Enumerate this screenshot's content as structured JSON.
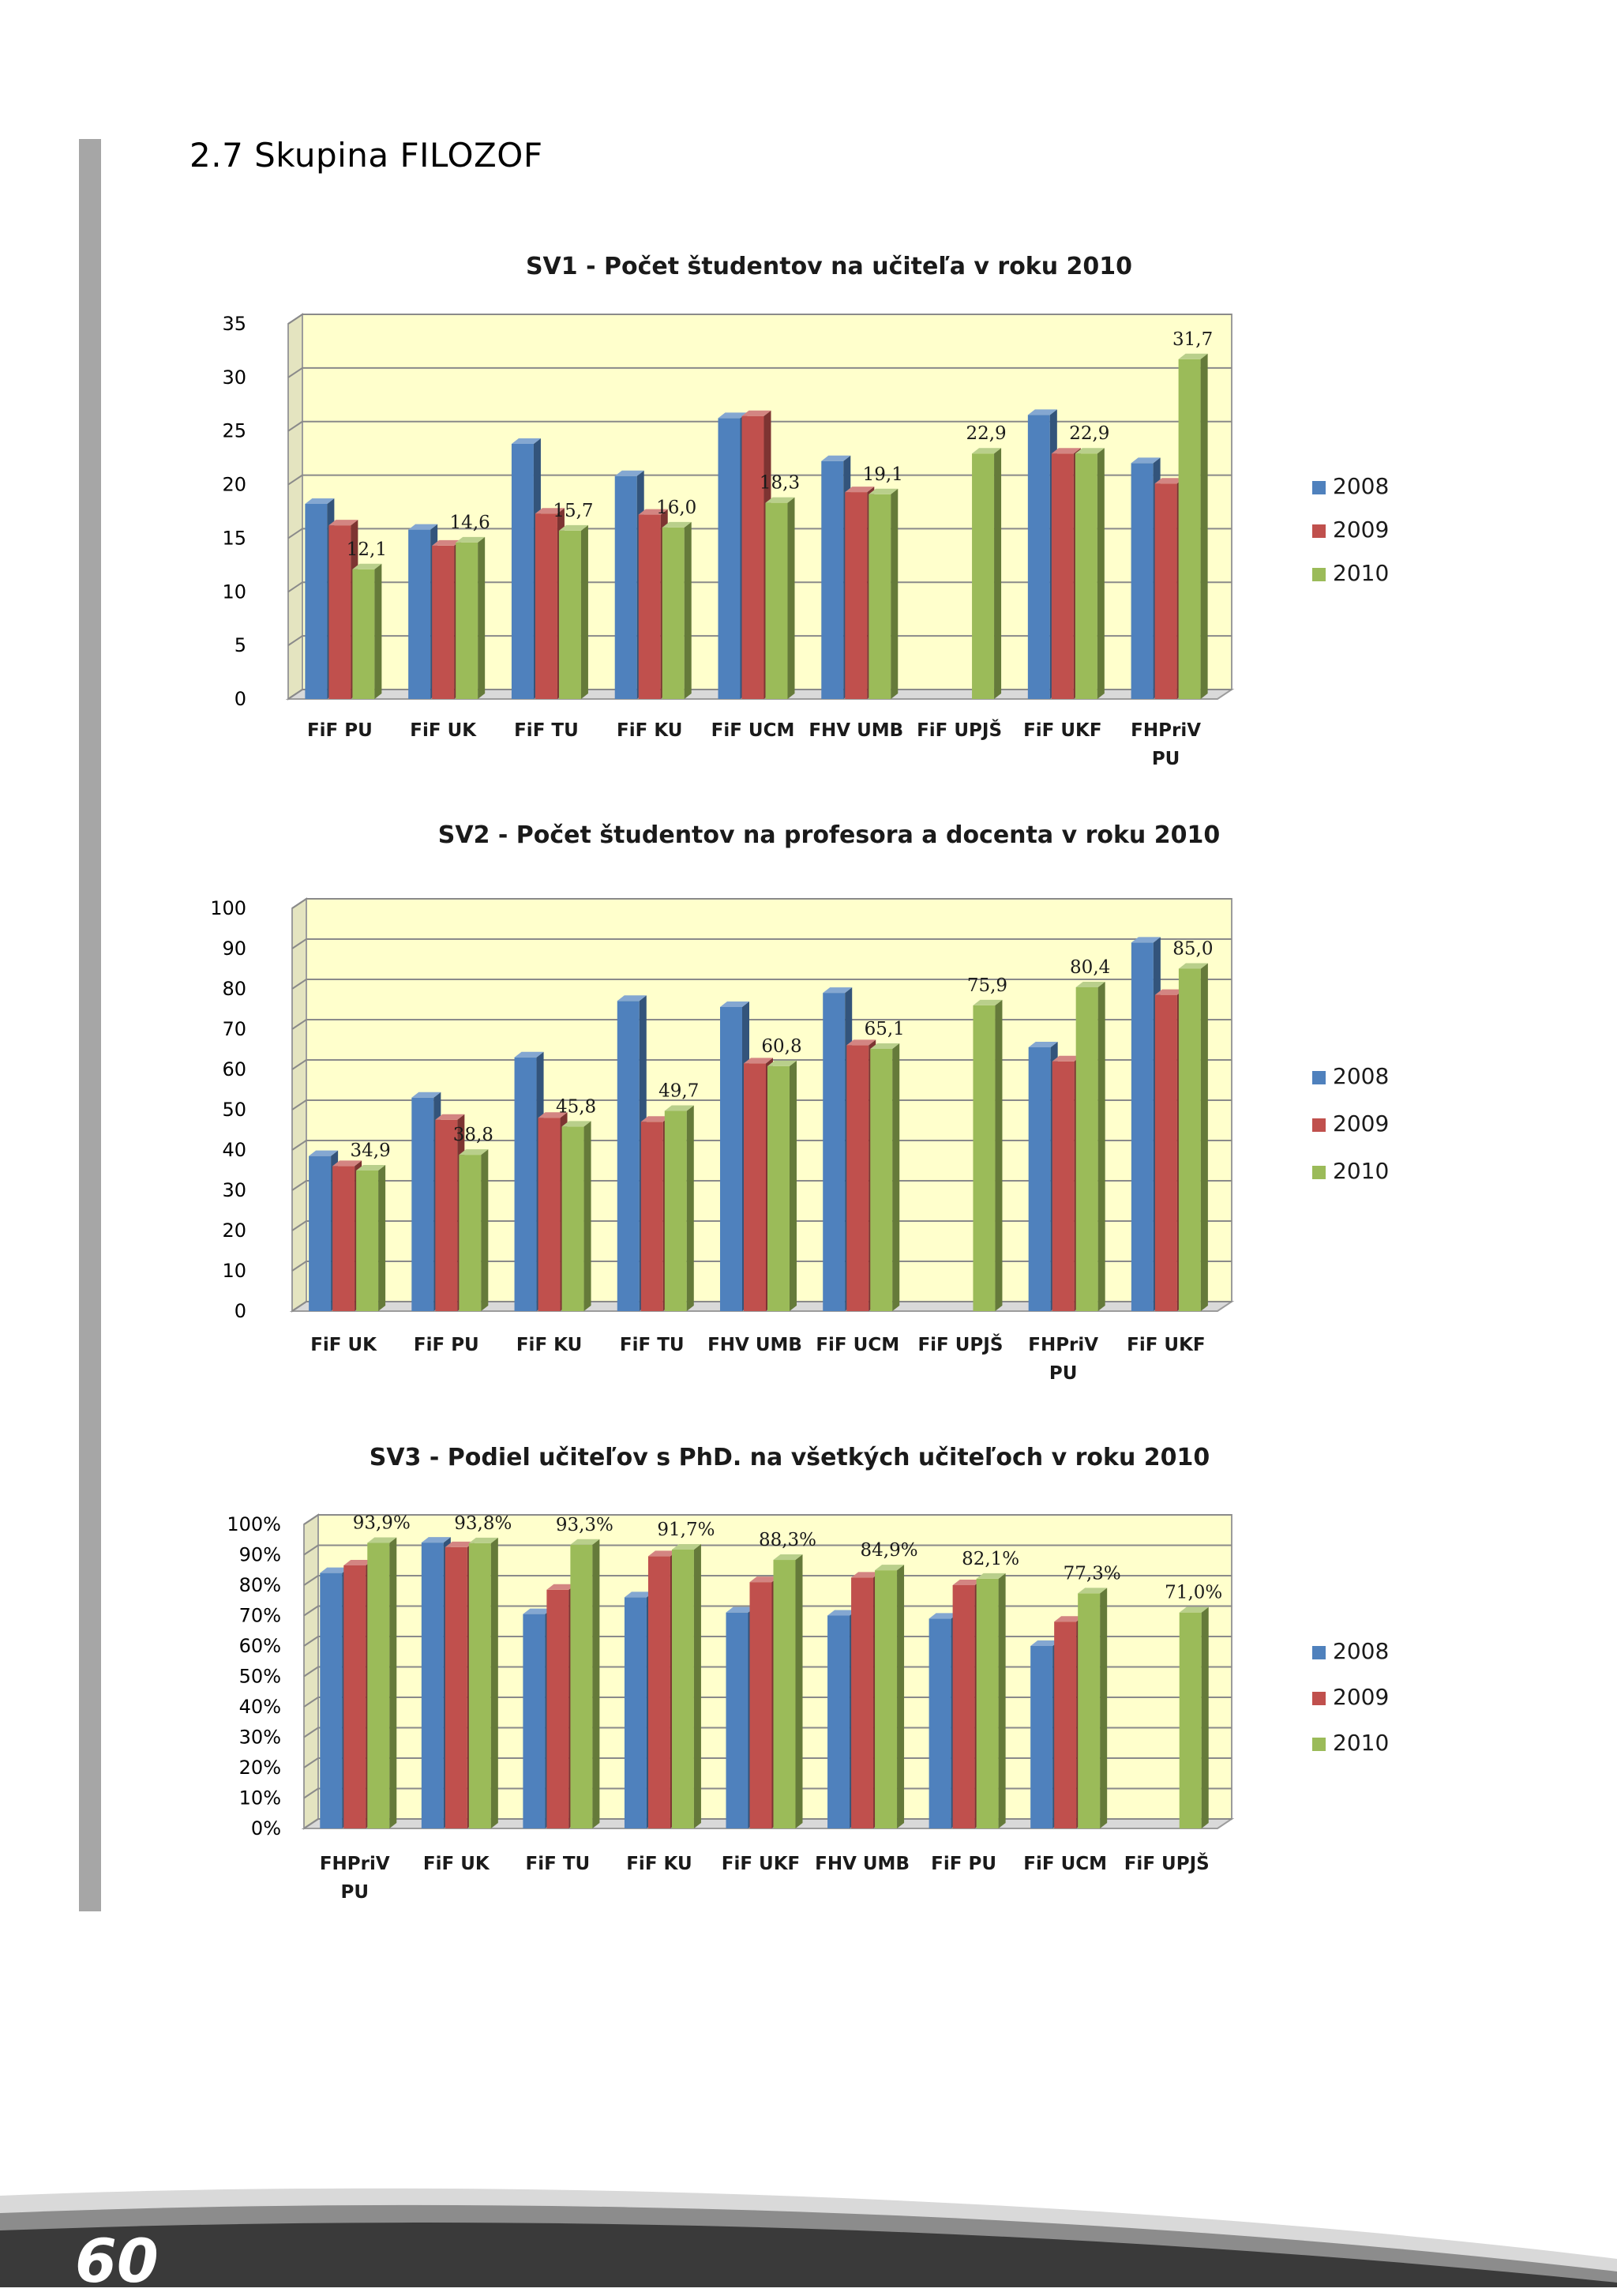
{
  "page": {
    "section_heading": "2.7 Skupina FILOZOF",
    "page_number": "60"
  },
  "colors": {
    "s2008": "#4F81BD",
    "s2009": "#C0504D",
    "s2010": "#9BBB59",
    "plot_background": "#FFFFCC",
    "side_bar": "#A6A6A6"
  },
  "chart_data": [
    {
      "id": "sv1",
      "type": "bar",
      "title": "SV1 - Počet študentov na učiteľa v roku 2010",
      "categories": [
        "FiF PU",
        "FiF UK",
        "FiF TU",
        "FiF  KU",
        "FiF  UCM",
        "FHV UMB",
        "FiF UPJŠ",
        "FiF  UKF",
        "FHPriV\nPU"
      ],
      "series": [
        {
          "name": "2008",
          "values": [
            18.2,
            15.8,
            23.8,
            20.8,
            26.2,
            22.2,
            null,
            26.5,
            22.0
          ]
        },
        {
          "name": "2009",
          "values": [
            16.2,
            14.3,
            17.3,
            17.2,
            26.4,
            19.3,
            null,
            22.9,
            20.1
          ]
        },
        {
          "name": "2010",
          "values": [
            12.1,
            14.6,
            15.7,
            16.0,
            18.3,
            19.1,
            22.9,
            22.9,
            31.7
          ]
        }
      ],
      "data_labels": [
        "12,1",
        "14,6",
        "15,7",
        "16,0",
        "18,3",
        "19,1",
        "22,9",
        "22,9",
        "31,7"
      ],
      "ylim": [
        0,
        35
      ],
      "yticks": [
        "0",
        "5",
        "10",
        "15",
        "20",
        "25",
        "30",
        "35"
      ],
      "xlabel": "",
      "ylabel": "",
      "legend": [
        "2008",
        "2009",
        "2010"
      ],
      "legend_position": "right",
      "grid": true
    },
    {
      "id": "sv2",
      "type": "bar",
      "title": "SV2 - Počet študentov na profesora a docenta v roku 2010",
      "categories": [
        "FiF UK",
        "FiF PU",
        "FiF  KU",
        "FiF TU",
        "FHV UMB",
        "FiF  UCM",
        "FiF UPJŠ",
        "FHPriV\nPU",
        "FiF  UKF"
      ],
      "series": [
        {
          "name": "2008",
          "values": [
            38.5,
            53.0,
            63.0,
            77.0,
            75.5,
            79.0,
            null,
            65.5,
            91.5
          ]
        },
        {
          "name": "2009",
          "values": [
            36.0,
            47.5,
            48.0,
            47.0,
            61.5,
            66.0,
            null,
            62.0,
            78.5
          ]
        },
        {
          "name": "2010",
          "values": [
            34.9,
            38.8,
            45.8,
            49.7,
            60.8,
            65.1,
            75.9,
            80.4,
            85.0
          ]
        }
      ],
      "data_labels": [
        "34,9",
        "38,8",
        "45,8",
        "49,7",
        "60,8",
        "65,1",
        "75,9",
        "80,4",
        "85,0"
      ],
      "ylim": [
        0,
        100
      ],
      "yticks": [
        "0",
        "10",
        "20",
        "30",
        "40",
        "50",
        "60",
        "70",
        "80",
        "90",
        "100"
      ],
      "xlabel": "",
      "ylabel": "",
      "legend": [
        "2008",
        "2009",
        "2010"
      ],
      "legend_position": "right",
      "grid": true
    },
    {
      "id": "sv3",
      "type": "bar",
      "title": "SV3 - Podiel učiteľov s PhD. na všetkých učiteľoch v roku 2010",
      "categories": [
        "FHPriV\nPU",
        "FiF UK",
        "FiF TU",
        "FiF  KU",
        "FiF  UKF",
        "FHV UMB",
        "FiF PU",
        "FiF  UCM",
        "FiF UPJŠ"
      ],
      "series": [
        {
          "name": "2008",
          "values": [
            84.0,
            94.0,
            70.5,
            76.0,
            71.0,
            70.0,
            69.0,
            60.0,
            null
          ]
        },
        {
          "name": "2009",
          "values": [
            86.5,
            92.5,
            78.5,
            89.5,
            81.0,
            82.5,
            80.0,
            68.0,
            null
          ]
        },
        {
          "name": "2010",
          "values": [
            93.9,
            93.8,
            93.3,
            91.7,
            88.3,
            84.9,
            82.1,
            77.3,
            71.0
          ]
        }
      ],
      "data_labels": [
        "93,9%",
        "93,8%",
        "93,3%",
        "91,7%",
        "88,3%",
        "84,9%",
        "82,1%",
        "77,3%",
        "71,0%"
      ],
      "ylim": [
        0,
        100
      ],
      "yticks": [
        "0%",
        "10%",
        "20%",
        "30%",
        "40%",
        "50%",
        "60%",
        "70%",
        "80%",
        "90%",
        "100%"
      ],
      "xlabel": "",
      "ylabel": "",
      "legend": [
        "2008",
        "2009",
        "2010"
      ],
      "legend_position": "right",
      "grid": true
    }
  ]
}
